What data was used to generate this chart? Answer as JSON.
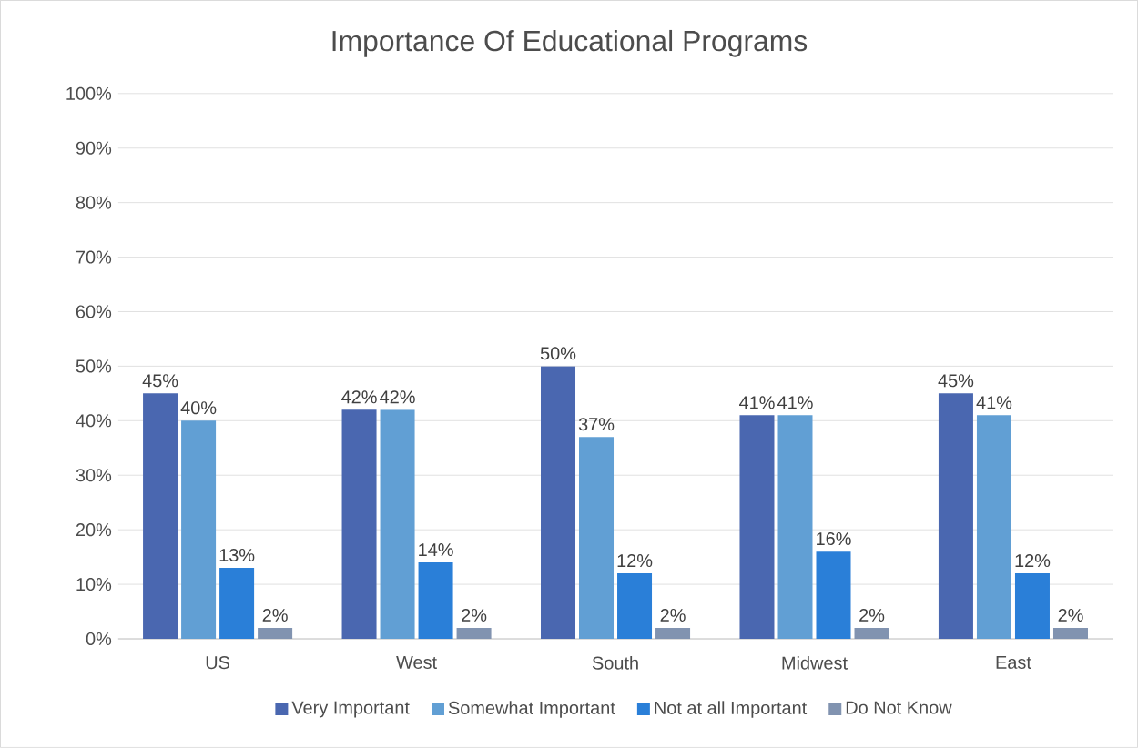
{
  "chart_data": {
    "type": "bar",
    "title": "Importance Of Educational Programs",
    "categories": [
      "US",
      "West",
      "South",
      "Midwest",
      "East"
    ],
    "series": [
      {
        "name": "Very Important",
        "color": "#4a67b0",
        "values": [
          45,
          42,
          50,
          41,
          45
        ],
        "value_labels": [
          "45%",
          "42%",
          "50%",
          "41%",
          "45%"
        ]
      },
      {
        "name": "Somewhat Important",
        "color": "#619fd4",
        "values": [
          40,
          42,
          37,
          41,
          41
        ],
        "value_labels": [
          "40%",
          "42%",
          "37%",
          "41%",
          "41%"
        ]
      },
      {
        "name": "Not at all Important",
        "color": "#2a7fd8",
        "values": [
          13,
          14,
          12,
          16,
          12
        ],
        "value_labels": [
          "13%",
          "14%",
          "12%",
          "16%",
          "12%"
        ]
      },
      {
        "name": "Do Not Know",
        "color": "#8193b0",
        "values": [
          2,
          2,
          2,
          2,
          2
        ],
        "value_labels": [
          "2%",
          "2%",
          "2%",
          "2%",
          "2%"
        ]
      }
    ],
    "ylim": [
      0,
      100
    ],
    "yticks": [
      {
        "value": 0,
        "label": "0%"
      },
      {
        "value": 10,
        "label": "10%"
      },
      {
        "value": 20,
        "label": "20%"
      },
      {
        "value": 30,
        "label": "30%"
      },
      {
        "value": 40,
        "label": "40%"
      },
      {
        "value": 50,
        "label": "50%"
      },
      {
        "value": 60,
        "label": "60%"
      },
      {
        "value": 70,
        "label": "70%"
      },
      {
        "value": 80,
        "label": "80%"
      },
      {
        "value": 90,
        "label": "90%"
      },
      {
        "value": 100,
        "label": "100%"
      }
    ],
    "grid": "y",
    "legend": "bottom"
  }
}
